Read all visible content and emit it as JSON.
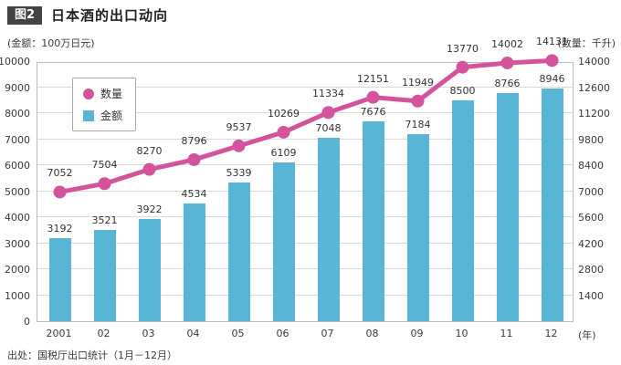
{
  "header": {
    "badge": "图2",
    "title": "日本酒的出口动向"
  },
  "axis_units": {
    "left": "(金额：100万日元)",
    "right": "(数量：千升)"
  },
  "legend": [
    {
      "label": "数量",
      "marker": "circle",
      "color": "#d4539d"
    },
    {
      "label": "金额",
      "marker": "square",
      "color": "#58b5d6"
    }
  ],
  "footer": {
    "source": "出处：国税厅出口统计（1月－12月）"
  },
  "chart_data": {
    "type": "bar",
    "subtype": "bar+line combo",
    "title": "日本酒的出口动向",
    "categories": [
      "2001",
      "02",
      "03",
      "04",
      "05",
      "06",
      "07",
      "08",
      "09",
      "10",
      "11",
      "12"
    ],
    "x_axis_unit": "(年)",
    "series": [
      {
        "name": "金额",
        "type": "bar",
        "axis": "left",
        "unit": "100万日元",
        "color": "#58b5d6",
        "values": [
          3192,
          3521,
          3922,
          4534,
          5339,
          6109,
          7048,
          7676,
          7184,
          8500,
          8766,
          8946
        ]
      },
      {
        "name": "数量",
        "type": "line",
        "axis": "right",
        "unit": "千升",
        "color": "#d4539d",
        "values": [
          7052,
          7504,
          8270,
          8796,
          9537,
          10269,
          11334,
          12151,
          11949,
          13770,
          14002,
          14131
        ]
      }
    ],
    "left_axis": {
      "min": 0,
      "max": 10000,
      "step": 1000
    },
    "right_axis": {
      "min": 0,
      "max": 14000,
      "step": 1400
    },
    "grid": true,
    "legend_position": "top-left-inside"
  }
}
